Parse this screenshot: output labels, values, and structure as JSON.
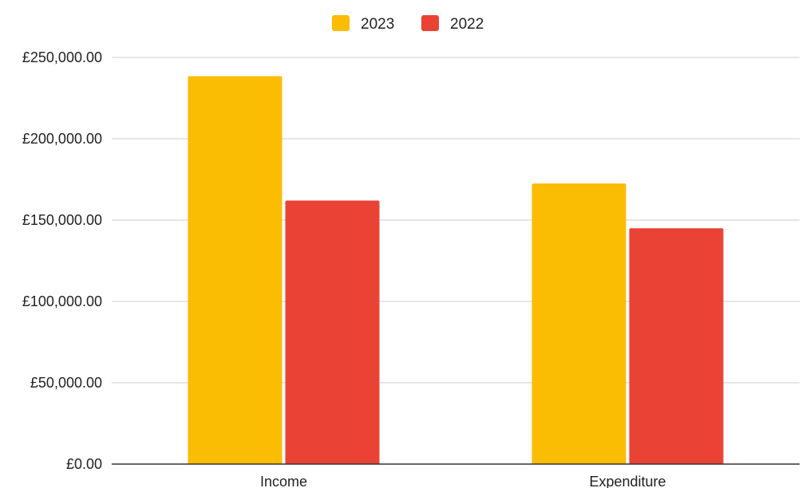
{
  "chart_data": {
    "type": "bar",
    "categories": [
      "Income",
      "Expenditure"
    ],
    "series": [
      {
        "name": "2023",
        "values": [
          238500,
          172500
        ],
        "color": "#FBBC04"
      },
      {
        "name": "2022",
        "values": [
          162000,
          145000
        ],
        "color": "#EA4335"
      }
    ],
    "ylim": [
      0,
      250000
    ],
    "yticks": [
      0,
      50000,
      100000,
      150000,
      200000,
      250000
    ],
    "ytick_labels": [
      "£0.00",
      "£50,000.00",
      "£100,000.00",
      "£150,000.00",
      "£200,000.00",
      "£250,000.00"
    ],
    "grid": true,
    "legend_position": "top"
  }
}
